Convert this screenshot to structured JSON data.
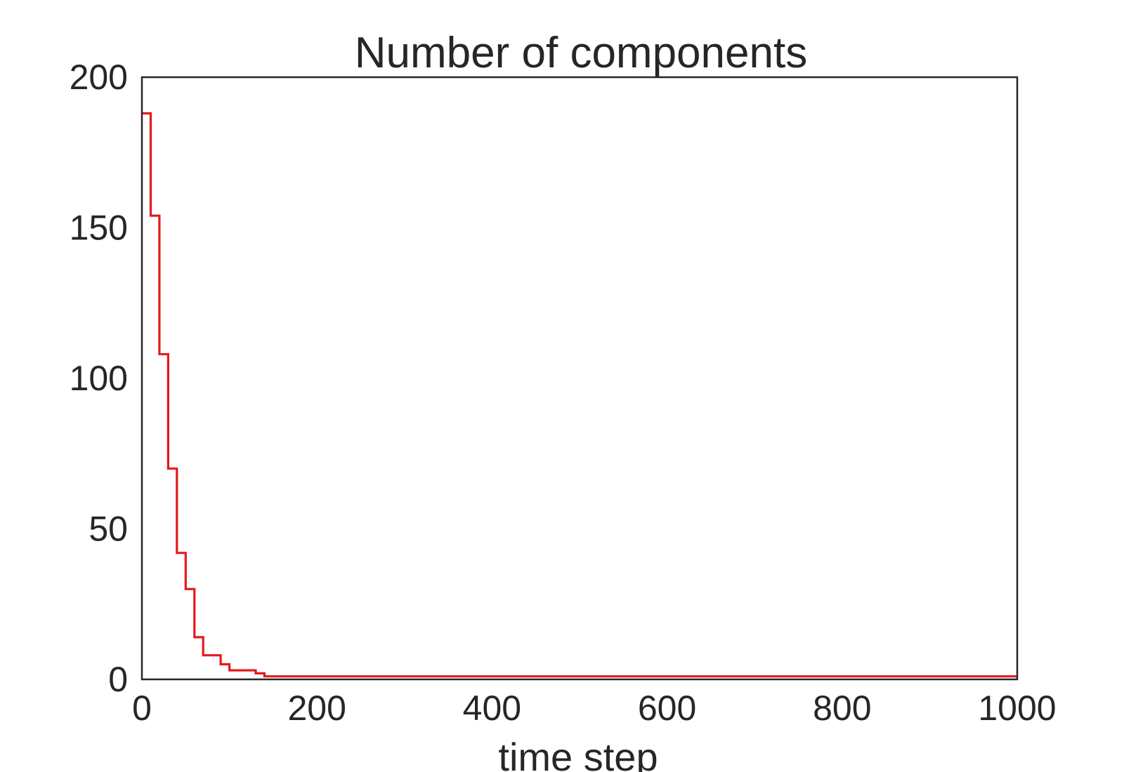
{
  "chart_data": {
    "type": "line",
    "title": "Number of components",
    "xlabel": "time step",
    "ylabel": "",
    "xlim": [
      0,
      1000
    ],
    "ylim": [
      0,
      200
    ],
    "xticks": [
      0,
      200,
      400,
      600,
      800,
      1000
    ],
    "xtick_labels": [
      "0",
      "200",
      "400",
      "600",
      "800",
      "1000"
    ],
    "yticks": [
      0,
      50,
      100,
      150,
      200
    ],
    "ytick_labels": [
      "0",
      "50",
      "100",
      "150",
      "200"
    ],
    "grid": false,
    "legend": "none",
    "line_style": "step",
    "colors": {
      "series": "#e31a1c",
      "axes": "#262626",
      "background": "#ffffff"
    },
    "series": [
      {
        "x": [
          0,
          10,
          20,
          30,
          40,
          50,
          60,
          70,
          80,
          90,
          100,
          110,
          120,
          130,
          140,
          150,
          200,
          400,
          600,
          800,
          1000
        ],
        "y": [
          188,
          154,
          108,
          70,
          42,
          30,
          14,
          8,
          8,
          5,
          3,
          3,
          3,
          2,
          1,
          1,
          1,
          1,
          1,
          1,
          1
        ]
      }
    ]
  }
}
